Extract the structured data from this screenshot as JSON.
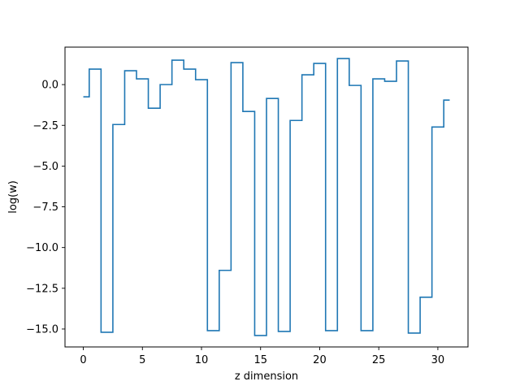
{
  "chart_data": {
    "type": "line",
    "drawstyle": "steps-mid",
    "xlabel": "z dimension",
    "ylabel": "log(w)",
    "xlim": [
      -1.55,
      32.55
    ],
    "ylim": [
      -16.1,
      2.3
    ],
    "xticks": [
      0,
      5,
      10,
      15,
      20,
      25,
      30
    ],
    "yticks": [
      0.0,
      -2.5,
      -5.0,
      -7.5,
      -10.0,
      -12.5,
      -15.0
    ],
    "xtick_labels": [
      "0",
      "5",
      "10",
      "15",
      "20",
      "25",
      "30"
    ],
    "ytick_labels": [
      "0.0",
      "−2.5",
      "−5.0",
      "−7.5",
      "−10.0",
      "−12.5",
      "−15.0"
    ],
    "grid": false,
    "series": [
      {
        "color": "#1f77b4",
        "x": [
          0,
          1,
          2,
          3,
          4,
          5,
          6,
          7,
          8,
          9,
          10,
          11,
          12,
          13,
          14,
          15,
          16,
          17,
          18,
          19,
          20,
          21,
          22,
          23,
          24,
          25,
          26,
          27,
          28,
          29,
          30,
          31
        ],
        "y": [
          -0.75,
          0.95,
          -15.2,
          -2.45,
          0.85,
          0.35,
          -1.45,
          0.0,
          1.5,
          0.95,
          0.3,
          -15.1,
          -11.4,
          1.35,
          -1.65,
          -15.4,
          -0.85,
          -15.15,
          -2.2,
          0.6,
          1.3,
          -15.1,
          1.6,
          -0.05,
          -15.1,
          0.35,
          0.2,
          1.45,
          -15.25,
          -13.05,
          -2.6,
          -0.95
        ]
      }
    ]
  }
}
